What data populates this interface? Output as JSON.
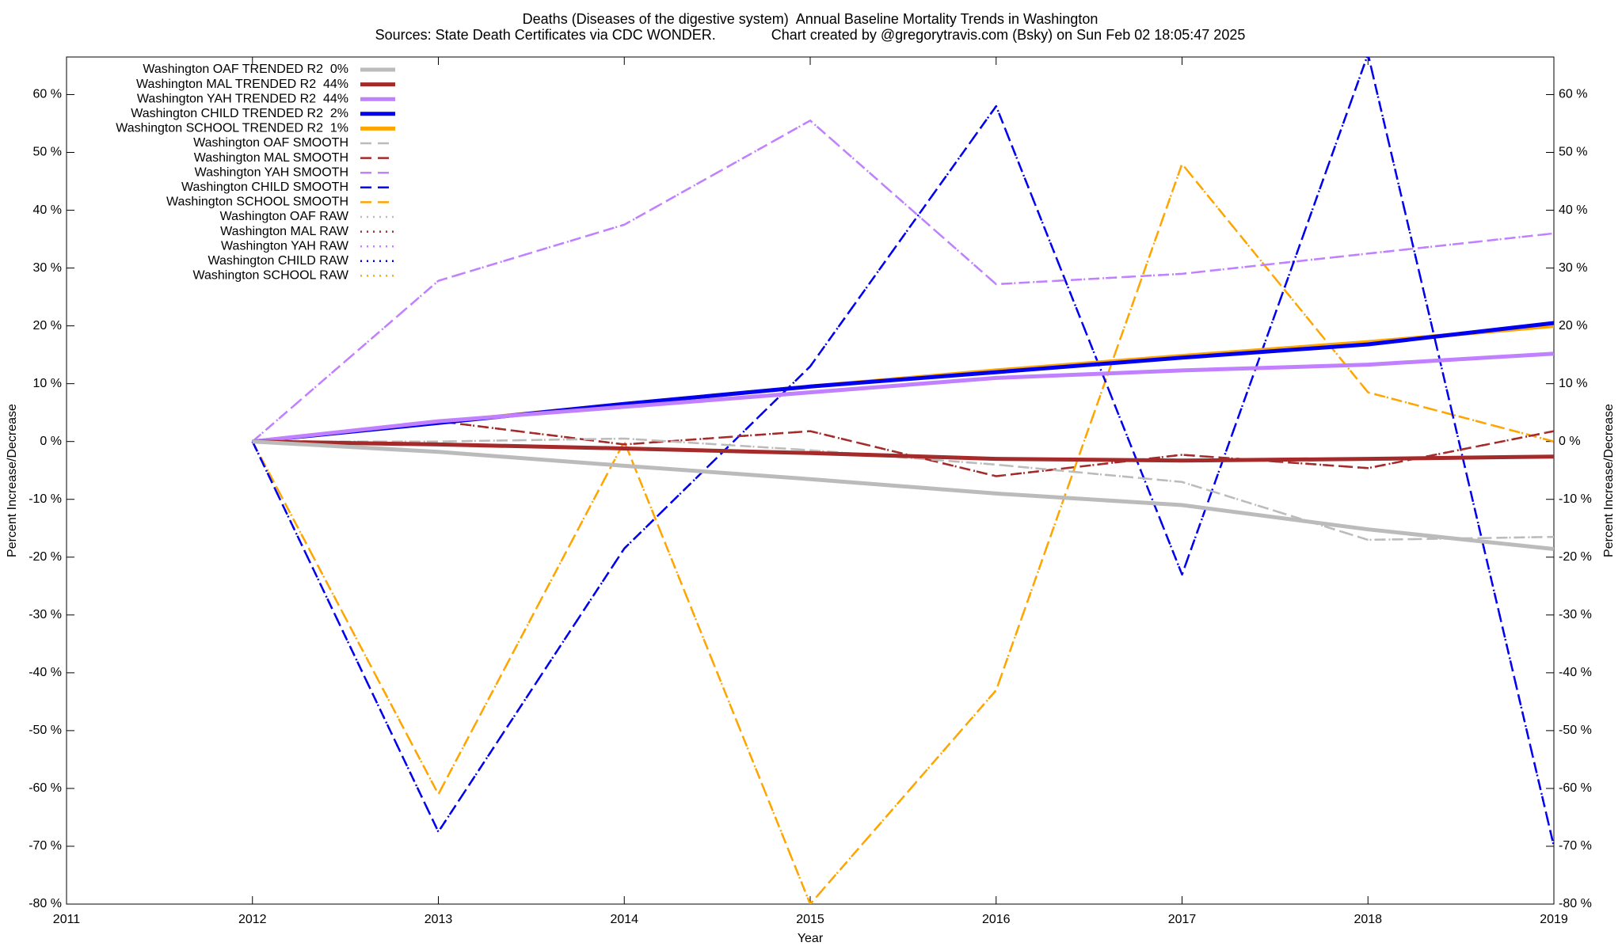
{
  "chart_data": {
    "type": "line",
    "title": "Deaths (Diseases of the digestive system)  Annual Baseline Mortality Trends in Washington",
    "subtitle": "Sources: State Death Certificates via CDC WONDER.              Chart created by @gregorytravis.com (Bsky) on Sun Feb 02 18:05:47 2025",
    "x_label": "Year",
    "y_label": "Percent Increase/Decrease",
    "y2_label": "Percent Increase/Decrease",
    "x": [
      2012,
      2013,
      2014,
      2015,
      2016,
      2017,
      2018,
      2019
    ],
    "xlim": [
      2011,
      2019
    ],
    "xticks": [
      2011,
      2012,
      2013,
      2014,
      2015,
      2016,
      2017,
      2018,
      2019
    ],
    "ylim": [
      -80,
      66.5
    ],
    "yticks": [
      {
        "value": -80,
        "label": "-80 %"
      },
      {
        "value": -70,
        "label": "-70 %"
      },
      {
        "value": -60,
        "label": "-60 %"
      },
      {
        "value": -50,
        "label": "-50 %"
      },
      {
        "value": -40,
        "label": "-40 %"
      },
      {
        "value": -30,
        "label": "-30 %"
      },
      {
        "value": -20,
        "label": "-20 %"
      },
      {
        "value": -10,
        "label": "-10 %"
      },
      {
        "value": 0,
        "label": "0 %"
      },
      {
        "value": 10,
        "label": "10 %"
      },
      {
        "value": 20,
        "label": "20 %"
      },
      {
        "value": 30,
        "label": "30 %"
      },
      {
        "value": 40,
        "label": "40 %"
      },
      {
        "value": 50,
        "label": "50 %"
      },
      {
        "value": 60,
        "label": "60 %"
      }
    ],
    "legend": "top-left",
    "series": [
      {
        "name": "Washington OAF TRENDED R2  0%",
        "color": "#bbbbbb",
        "style": "solid",
        "values": [
          0,
          -1.8,
          -4.2,
          -6.5,
          -9,
          -11,
          -15.2,
          -18.6
        ]
      },
      {
        "name": "Washington MAL TRENDED R2  44%",
        "color": "#a52a2a",
        "style": "solid",
        "values": [
          0,
          -0.5,
          -1.2,
          -2,
          -3,
          -3.3,
          -3,
          -2.6
        ]
      },
      {
        "name": "Washington YAH TRENDED R2  44%",
        "color": "#c080ff",
        "style": "solid",
        "values": [
          0,
          3.5,
          6,
          8.5,
          11,
          12.3,
          13.3,
          15.2
        ]
      },
      {
        "name": "Washington CHILD TRENDED R2  2%",
        "color": "#0000ee",
        "style": "solid",
        "values": [
          0,
          3.2,
          6.5,
          9.5,
          12,
          14.5,
          16.8,
          20.5
        ]
      },
      {
        "name": "Washington SCHOOL TRENDED R2  1%",
        "color": "#ffa500",
        "style": "solid",
        "values": [
          0,
          3.3,
          6.5,
          9.5,
          12.3,
          14.8,
          17.2,
          20
        ]
      },
      {
        "name": "Washington OAF SMOOTH",
        "color": "#bbbbbb",
        "style": "dashed",
        "values": [
          0,
          0,
          0.5,
          -1.5,
          -4,
          -7,
          -17,
          -16.5
        ]
      },
      {
        "name": "Washington MAL SMOOTH",
        "color": "#a52a2a",
        "style": "dashed",
        "values": [
          0,
          3.5,
          -0.5,
          1.8,
          -6,
          -2.3,
          -4.6,
          1.8
        ]
      },
      {
        "name": "Washington YAH SMOOTH",
        "color": "#c080ff",
        "style": "dashed",
        "values": [
          0,
          27.8,
          37.5,
          55.5,
          27.2,
          29,
          32.5,
          36
        ]
      },
      {
        "name": "Washington CHILD SMOOTH",
        "color": "#0000ee",
        "style": "dashed",
        "values": [
          0,
          -67.5,
          -18.5,
          13,
          58,
          -23,
          67,
          -70
        ]
      },
      {
        "name": "Washington SCHOOL SMOOTH",
        "color": "#ffa500",
        "style": "dashed",
        "values": [
          0,
          -61,
          0,
          -80,
          -43,
          48,
          8.5,
          0
        ]
      },
      {
        "name": "Washington OAF RAW",
        "color": "#bbbbbb",
        "style": "dotted",
        "values": [
          0,
          0,
          0.5,
          -1.5,
          -4,
          -7,
          -17,
          -16.5
        ]
      },
      {
        "name": "Washington MAL RAW",
        "color": "#a52a2a",
        "style": "dotted",
        "values": [
          0,
          3.5,
          -0.5,
          1.8,
          -6,
          -2.3,
          -4.6,
          1.8
        ]
      },
      {
        "name": "Washington YAH RAW",
        "color": "#c080ff",
        "style": "dotted",
        "values": [
          0,
          27.8,
          37.5,
          55.5,
          27.2,
          29,
          32.5,
          36
        ]
      },
      {
        "name": "Washington CHILD RAW",
        "color": "#0000ee",
        "style": "dotted",
        "values": [
          0,
          -67.5,
          -18.5,
          13,
          58,
          -23,
          67,
          -70
        ]
      },
      {
        "name": "Washington SCHOOL RAW",
        "color": "#ffa500",
        "style": "dotted",
        "values": [
          0,
          -61,
          0,
          -80,
          -43,
          48,
          8.5,
          0
        ]
      }
    ]
  }
}
